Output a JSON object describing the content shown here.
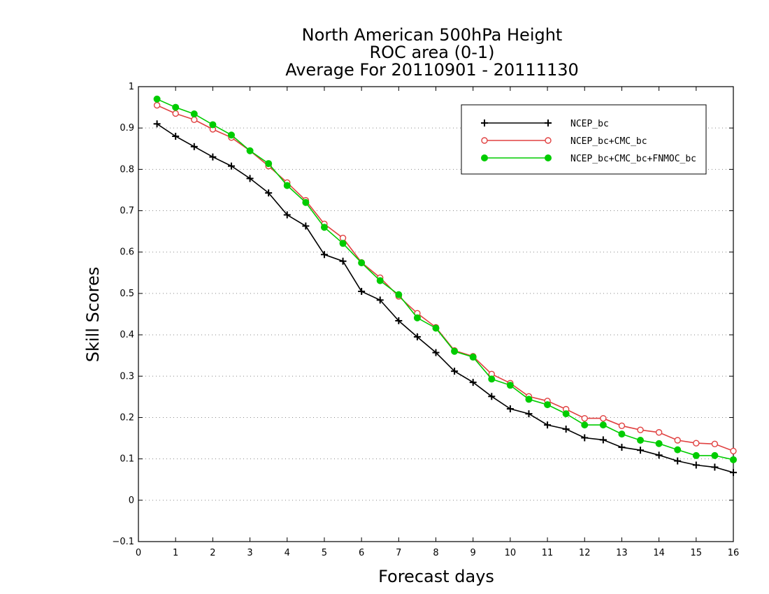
{
  "chart_data": {
    "type": "line",
    "title_lines": [
      "North American 500hPa Height",
      "ROC area (0-1)",
      "Average For 20110901 - 20111130"
    ],
    "xlabel": "Forecast days",
    "ylabel": "Skill Scores",
    "xlim": [
      0,
      16
    ],
    "ylim": [
      -0.1,
      1
    ],
    "x_ticks": [
      "0",
      "1",
      "2",
      "3",
      "4",
      "5",
      "6",
      "7",
      "8",
      "9",
      "10",
      "11",
      "12",
      "13",
      "14",
      "15",
      "16"
    ],
    "y_ticks": [
      "−0.1",
      "0",
      "0.1",
      "0.2",
      "0.3",
      "0.4",
      "0.5",
      "0.6",
      "0.7",
      "0.8",
      "0.9",
      "1"
    ],
    "grid": "horizontal dotted",
    "legend_position": "top-right",
    "x": [
      0.5,
      1,
      1.5,
      2,
      2.5,
      3,
      3.5,
      4,
      4.5,
      5,
      5.5,
      6,
      6.5,
      7,
      7.5,
      8,
      8.5,
      9,
      9.5,
      10,
      10.5,
      11,
      11.5,
      12,
      12.5,
      13,
      13.5,
      14,
      14.5,
      15,
      15.5,
      16
    ],
    "series": [
      {
        "name": "NCEP_bc",
        "color": "#000000",
        "marker": "plus",
        "values": [
          0.91,
          0.88,
          0.855,
          0.83,
          0.808,
          0.778,
          0.743,
          0.69,
          0.663,
          0.594,
          0.578,
          0.505,
          0.484,
          0.434,
          0.395,
          0.357,
          0.312,
          0.285,
          0.251,
          0.221,
          0.209,
          0.182,
          0.172,
          0.151,
          0.146,
          0.128,
          0.121,
          0.109,
          0.095,
          0.085,
          0.08,
          0.067
        ]
      },
      {
        "name": "NCEP_bc+CMC_bc",
        "color": "#e04040",
        "marker": "open-circle",
        "values": [
          0.955,
          0.935,
          0.92,
          0.897,
          0.877,
          0.845,
          0.808,
          0.768,
          0.725,
          0.668,
          0.634,
          0.575,
          0.538,
          0.493,
          0.452,
          0.418,
          0.362,
          0.348,
          0.305,
          0.283,
          0.251,
          0.24,
          0.22,
          0.198,
          0.198,
          0.18,
          0.17,
          0.164,
          0.145,
          0.138,
          0.136,
          0.119
        ]
      },
      {
        "name": "NCEP_bc+CMC_bc+FNMOC_bc",
        "color": "#00cc00",
        "marker": "filled-circle",
        "values": [
          0.97,
          0.95,
          0.934,
          0.908,
          0.883,
          0.845,
          0.814,
          0.761,
          0.72,
          0.66,
          0.621,
          0.574,
          0.531,
          0.497,
          0.441,
          0.416,
          0.36,
          0.346,
          0.293,
          0.278,
          0.244,
          0.231,
          0.209,
          0.182,
          0.182,
          0.16,
          0.145,
          0.137,
          0.122,
          0.108,
          0.108,
          0.098
        ]
      }
    ]
  }
}
